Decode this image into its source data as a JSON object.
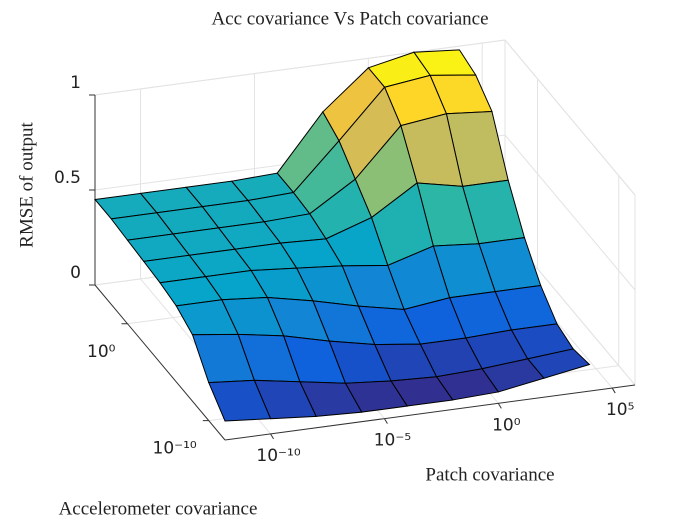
{
  "chart_data": {
    "type": "surface",
    "title": "Acc covariance Vs Patch covariance",
    "x_label": "Patch covariance",
    "y_label": "Accelerometer covariance",
    "z_label": "RMSE of output",
    "x": [
      1e-12,
      1e-10,
      1e-08,
      1e-06,
      0.0001,
      0.01,
      1,
      100,
      10000
    ],
    "y": [
      1e-12,
      1e-10,
      1e-08,
      1e-06,
      0.0001,
      0.01,
      1,
      100,
      10000
    ],
    "z": [
      [
        0.1,
        0.08,
        0.06,
        0.05,
        0.05,
        0.05,
        0.06,
        0.1,
        0.14
      ],
      [
        0.2,
        0.18,
        0.14,
        0.1,
        0.08,
        0.07,
        0.08,
        0.1,
        0.12
      ],
      [
        0.35,
        0.32,
        0.28,
        0.22,
        0.17,
        0.14,
        0.14,
        0.15,
        0.15
      ],
      [
        0.4,
        0.4,
        0.38,
        0.33,
        0.27,
        0.22,
        0.25,
        0.25,
        0.25
      ],
      [
        0.42,
        0.42,
        0.42,
        0.4,
        0.38,
        0.35,
        0.42,
        0.4,
        0.4
      ],
      [
        0.43,
        0.43,
        0.43,
        0.43,
        0.42,
        0.5,
        0.65,
        0.6,
        0.6
      ],
      [
        0.44,
        0.44,
        0.44,
        0.44,
        0.45,
        0.6,
        0.85,
        0.88,
        0.86
      ],
      [
        0.45,
        0.45,
        0.45,
        0.45,
        0.46,
        0.7,
        0.95,
        0.98,
        0.95
      ],
      [
        0.45,
        0.45,
        0.45,
        0.45,
        0.46,
        0.75,
        0.95,
        1.0,
        0.98
      ]
    ],
    "x_scale": "log",
    "y_scale": "log",
    "xlim": [
      1e-12,
      1000000.0
    ],
    "ylim": [
      1e-12,
      10000.0
    ],
    "zlim": [
      0,
      1
    ],
    "xticks": [
      {
        "value": 1e-10,
        "label": "10⁻¹⁰"
      },
      {
        "value": 1e-05,
        "label": "10⁻⁵"
      },
      {
        "value": 1,
        "label": "10⁰"
      },
      {
        "value": 100000.0,
        "label": "10⁵"
      }
    ],
    "yticks": [
      {
        "value": 1e-10,
        "label": "10⁻¹⁰"
      },
      {
        "value": 1,
        "label": "10⁰"
      }
    ],
    "zticks": [
      0,
      0.5,
      1
    ],
    "grid": true,
    "colormap": "parula"
  }
}
